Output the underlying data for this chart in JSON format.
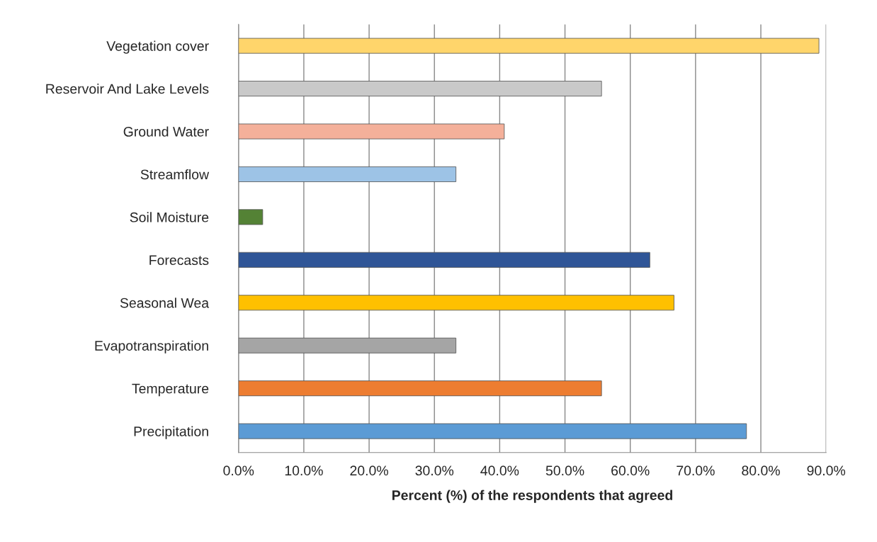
{
  "chart_data": {
    "type": "bar",
    "orientation": "horizontal",
    "xlabel": "Percent (%) of the respondents that agreed",
    "categories": [
      "Vegetation cover",
      "Reservoir And Lake Levels",
      "Ground Water",
      "Streamflow",
      "Soil Moisture",
      "Forecasts",
      "Seasonal Wea",
      "Evapotranspiration",
      "Temperature",
      "Precipitation"
    ],
    "values": [
      88.9,
      55.6,
      40.7,
      33.3,
      3.7,
      63.0,
      66.7,
      33.3,
      55.6,
      77.8
    ],
    "colors": [
      "#ffd56b",
      "#c9c9c9",
      "#f4b09a",
      "#9dc3e6",
      "#548235",
      "#2f5597",
      "#ffc000",
      "#a5a5a5",
      "#ed7d31",
      "#5b9bd5"
    ],
    "xlim": [
      0,
      90
    ],
    "xticks": [
      {
        "value": 0,
        "label": "0.0%"
      },
      {
        "value": 10,
        "label": "10.0%"
      },
      {
        "value": 20,
        "label": "20.0%"
      },
      {
        "value": 30,
        "label": "30.0%"
      },
      {
        "value": 40,
        "label": "40.0%"
      },
      {
        "value": 50,
        "label": "50.0%"
      },
      {
        "value": 60,
        "label": "60.0%"
      },
      {
        "value": 70,
        "label": "70.0%"
      },
      {
        "value": 80,
        "label": "80.0%"
      },
      {
        "value": 90,
        "label": "90.0%"
      }
    ],
    "grid": "x"
  }
}
